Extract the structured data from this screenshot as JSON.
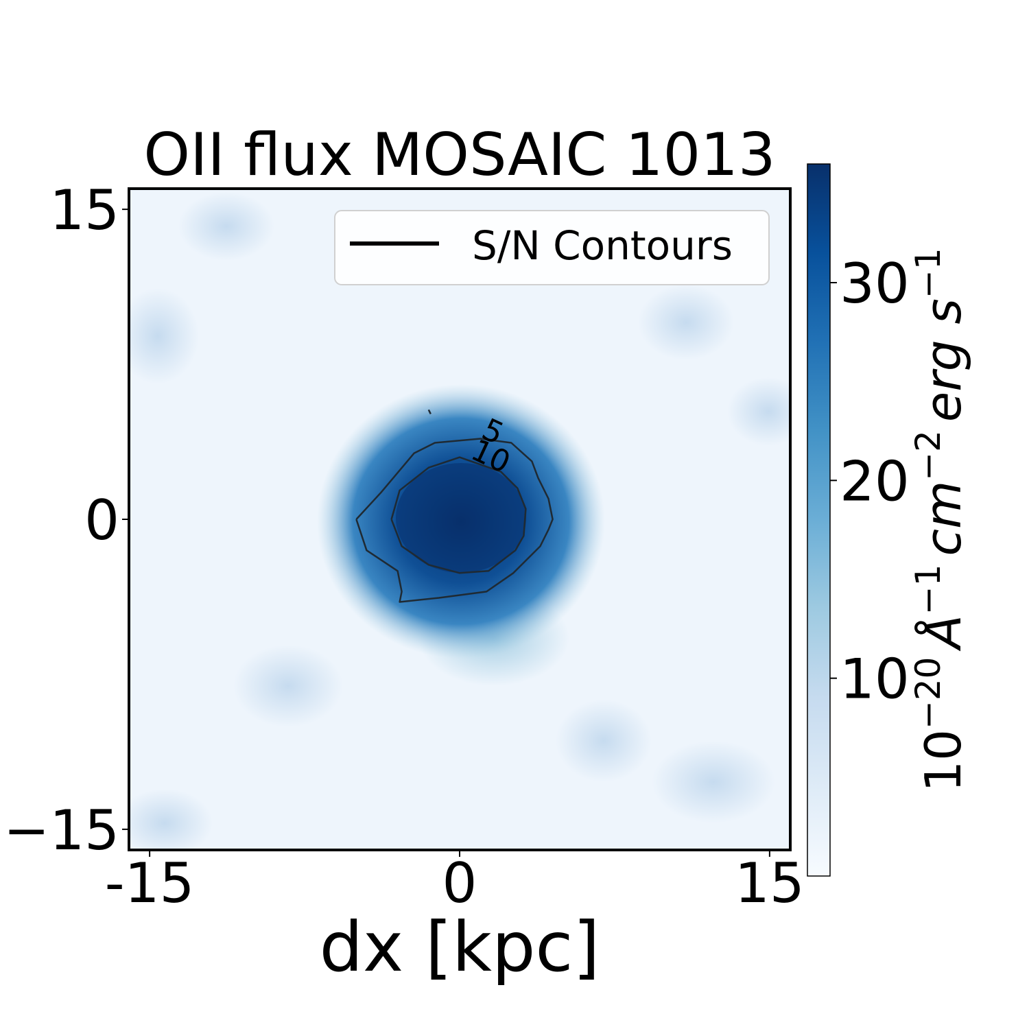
{
  "chart_data": {
    "type": "heatmap",
    "title": "OII flux MOSAIC 1013",
    "xlabel": "dx [kpc]",
    "ylabel": "",
    "xlim": [
      -16,
      16
    ],
    "ylim": [
      -16,
      16
    ],
    "x_ticks": [
      {
        "value": -15,
        "label": "-15"
      },
      {
        "value": 0,
        "label": "0"
      },
      {
        "value": 15,
        "label": "15"
      }
    ],
    "y_ticks": [
      {
        "value": 15,
        "label": "15"
      },
      {
        "value": 0,
        "label": "0"
      },
      {
        "value": -15,
        "label": "−15"
      }
    ],
    "colormap": "Blues",
    "colorbar": {
      "label_base": "10",
      "label_exp1": "−20",
      "label_unit1": "Å",
      "label_exp2": "−1",
      "label_unit2": "cm",
      "label_exp3": "−2",
      "label_unit3": "erg s",
      "label_exp4": "−1",
      "range": [
        0,
        36
      ],
      "ticks": [
        {
          "value": 10,
          "label": "10"
        },
        {
          "value": 20,
          "label": "20"
        },
        {
          "value": 30,
          "label": "30"
        }
      ]
    },
    "peak": {
      "x": 0,
      "y": 0,
      "value": 36
    },
    "legend": {
      "label": "S/N Contours",
      "position": "top-right"
    },
    "contours": [
      {
        "level": 5,
        "label": "5",
        "points": [
          [
            -5,
            0
          ],
          [
            -4.5,
            -1.5
          ],
          [
            -3,
            -2.5
          ],
          [
            -2.8,
            -3.5
          ],
          [
            -2.9,
            -4
          ],
          [
            -1,
            -3.8
          ],
          [
            1.3,
            -3.5
          ],
          [
            2.6,
            -2.6
          ],
          [
            3.9,
            -1.3
          ],
          [
            4.3,
            -0.5
          ],
          [
            4.5,
            0
          ],
          [
            4.3,
            1
          ],
          [
            3.8,
            2
          ],
          [
            3.5,
            2.8
          ],
          [
            2.5,
            3.7
          ],
          [
            1,
            3.9
          ],
          [
            -1.2,
            3.7
          ],
          [
            -2.2,
            3.2
          ],
          [
            -3.8,
            1.3
          ],
          [
            -5,
            0
          ]
        ]
      },
      {
        "level": 10,
        "label": "10",
        "points": [
          [
            -3.3,
            0
          ],
          [
            -2.8,
            -1.3
          ],
          [
            -1.5,
            -2.2
          ],
          [
            0,
            -2.6
          ],
          [
            1.4,
            -2.5
          ],
          [
            2.7,
            -1.5
          ],
          [
            3.1,
            -0.8
          ],
          [
            3.2,
            0.5
          ],
          [
            2.8,
            1.5
          ],
          [
            2.0,
            2.3
          ],
          [
            0,
            3
          ],
          [
            -1.5,
            2.5
          ],
          [
            -2.9,
            1.4
          ],
          [
            -3.3,
            0
          ]
        ]
      },
      {
        "level": 5,
        "label": "",
        "points": [
          [
            -1.5,
            5.3
          ],
          [
            -1.4,
            5.1
          ]
        ]
      }
    ],
    "label_positions": [
      {
        "level": 5,
        "x": 1.4,
        "y": 3.8
      },
      {
        "level": 10,
        "x": 1.3,
        "y": 2.6
      }
    ]
  }
}
